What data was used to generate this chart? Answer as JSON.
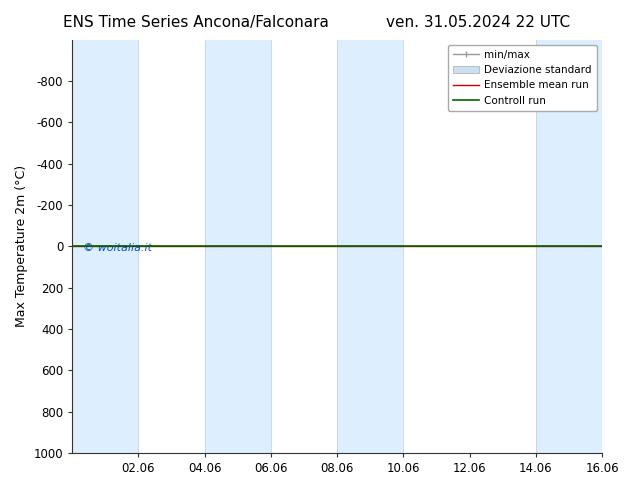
{
  "title_left": "ENS Time Series Ancona/Falconara",
  "title_right": "ven. 31.05.2024 22 UTC",
  "ylabel": "Max Temperature 2m (°C)",
  "watermark": "© woitalia.it",
  "watermark_color": "#0055cc",
  "ylim_bottom": 1000,
  "ylim_top": -1000,
  "yticks": [
    -800,
    -600,
    -400,
    -200,
    0,
    200,
    400,
    600,
    800,
    1000
  ],
  "xtick_labels": [
    "02.06",
    "04.06",
    "06.06",
    "08.06",
    "10.06",
    "12.06",
    "14.06",
    "16.06"
  ],
  "bg_color": "#ffffff",
  "plot_bg_color": "#ffffff",
  "band_color": "#ddeeff",
  "hline_color_ensemble": "#cc0000",
  "hline_color_control": "#006600",
  "legend_labels": [
    "min/max",
    "Deviazione standard",
    "Ensemble mean run",
    "Controll run"
  ],
  "legend_line_color": "#999999",
  "legend_band_color": "#cce0f0",
  "legend_ensemble_color": "#cc0000",
  "legend_control_color": "#006600",
  "title_fontsize": 11,
  "axis_fontsize": 9,
  "tick_fontsize": 8.5,
  "legend_fontsize": 7.5,
  "n_xticks": 8,
  "x_min": 0,
  "x_max": 16,
  "shaded_bands": [
    {
      "x_start": 0,
      "x_end": 2
    },
    {
      "x_start": 4,
      "x_end": 6
    },
    {
      "x_start": 8,
      "x_end": 10
    },
    {
      "x_start": 14,
      "x_end": 16
    }
  ],
  "xtick_positions": [
    2,
    4,
    6,
    8,
    10,
    12,
    14,
    16
  ]
}
